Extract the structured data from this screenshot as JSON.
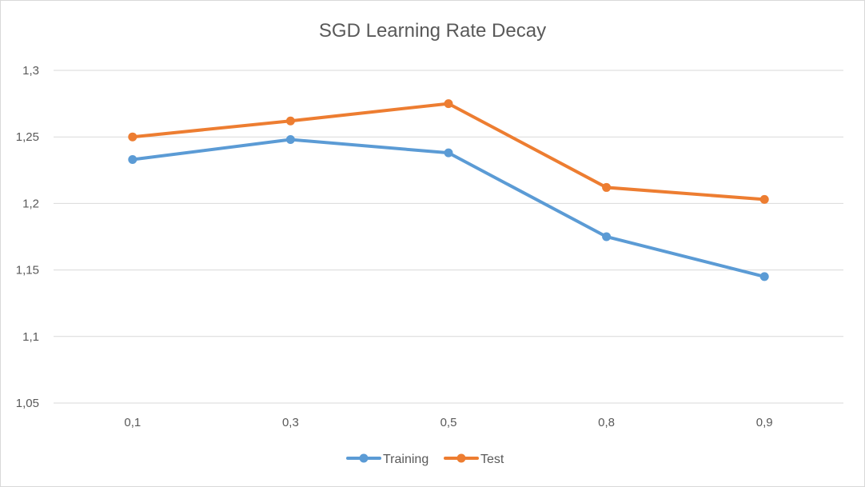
{
  "chart_data": {
    "type": "line",
    "title": "SGD Learning Rate Decay",
    "xlabel": "",
    "ylabel": "",
    "categories": [
      "0,1",
      "0,3",
      "0,5",
      "0,8",
      "0,9"
    ],
    "ylim": [
      1.05,
      1.3
    ],
    "yticks": [
      1.05,
      1.1,
      1.15,
      1.2,
      1.25,
      1.3
    ],
    "ytick_labels": [
      "1,05",
      "1,1",
      "1,15",
      "1,2",
      "1,25",
      "1,3"
    ],
    "grid": true,
    "legend_position": "bottom",
    "series": [
      {
        "name": "Training",
        "color": "#5b9bd5",
        "values": [
          1.233,
          1.248,
          1.238,
          1.175,
          1.145
        ]
      },
      {
        "name": "Test",
        "color": "#ed7d31",
        "values": [
          1.25,
          1.262,
          1.275,
          1.212,
          1.203
        ]
      }
    ]
  }
}
